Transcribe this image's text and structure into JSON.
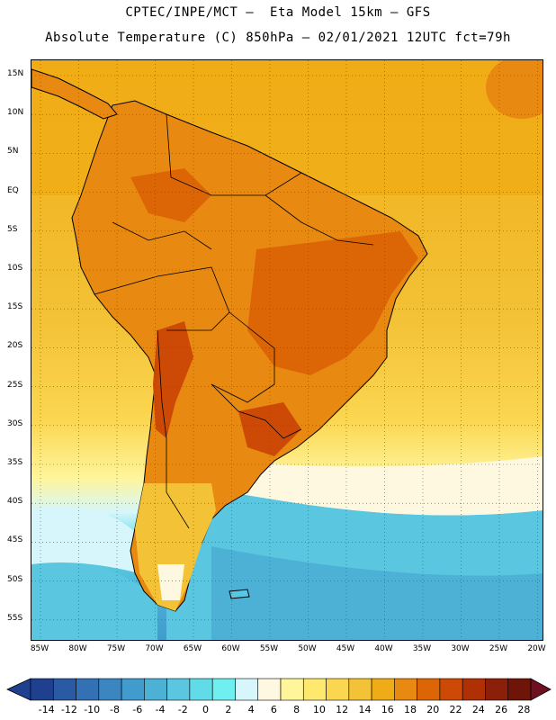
{
  "header": {
    "title_line1": "CPTEC/INPE/MCT –  Eta Model 15km – GFS",
    "title_line2": "Absolute Temperature (C) 850hPa – 02/01/2021 12UTC fct=79h"
  },
  "map": {
    "lat_labels": [
      "15N",
      "10N",
      "5N",
      "EQ",
      "5S",
      "10S",
      "15S",
      "20S",
      "25S",
      "30S",
      "35S",
      "40S",
      "45S",
      "50S",
      "55S"
    ],
    "lon_labels": [
      "85W",
      "80W",
      "75W",
      "70W",
      "65W",
      "60W",
      "55W",
      "50W",
      "45W",
      "40W",
      "35W",
      "30W",
      "25W",
      "20W"
    ],
    "lat_range": [
      -57.5,
      16.5
    ],
    "lon_range": [
      -86,
      -20
    ],
    "gridlines": true
  },
  "colorbar": {
    "labels": [
      "-14",
      "-12",
      "-10",
      "-8",
      "-6",
      "-4",
      "-2",
      "0",
      "2",
      "4",
      "6",
      "8",
      "10",
      "12",
      "14",
      "16",
      "18",
      "20",
      "22",
      "24",
      "26",
      "28"
    ],
    "colors": [
      "#1f3f8f",
      "#2a5aa3",
      "#3470b4",
      "#3b85c1",
      "#419bcc",
      "#4db1d6",
      "#5ac6df",
      "#61dbe8",
      "#6fefef",
      "#d6f6fb",
      "#fff8e0",
      "#fff59b",
      "#ffe86e",
      "#fbd650",
      "#f3c237",
      "#f0ac16",
      "#e88912",
      "#dc6605",
      "#cc4a05",
      "#b03006",
      "#8c1f0a",
      "#6e1408"
    ]
  }
}
